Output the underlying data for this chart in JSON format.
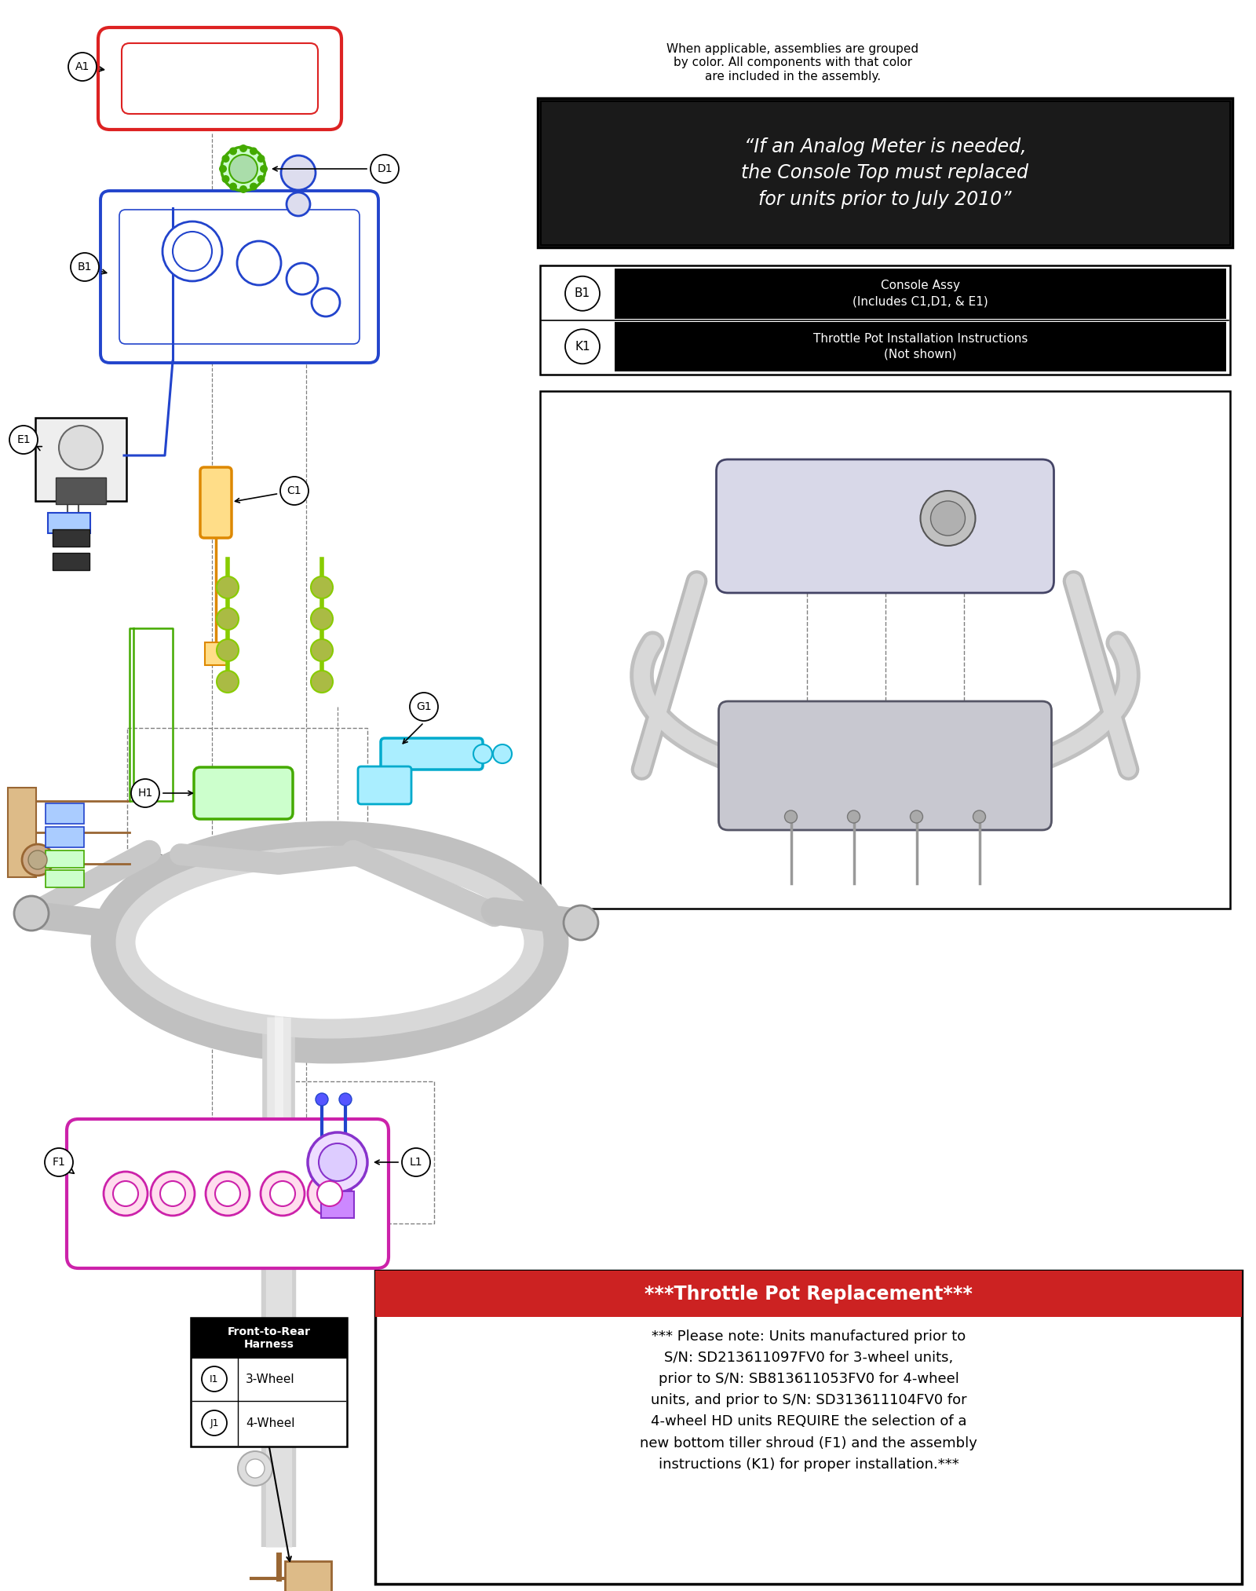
{
  "bg_color": "#ffffff",
  "header_note": "When applicable, assemblies are grouped\nby color. All components with that color\nare included in the assembly.",
  "analog_box_text": "“If an Analog Meter is needed,\nthe Console Top must replaced\nfor units prior to July 2010”",
  "legend_b1_desc": "Console Assy\n(Includes C1,D1, & E1)",
  "legend_k1_desc": "Throttle Pot Installation Instructions\n(Not shown)",
  "throttle_header": "***Throttle Pot Replacement***",
  "throttle_body": "*** Please note: Units manufactured prior to\nS/N: SD213611097FV0 for 3-wheel units,\nprior to S/N: SB813611053FV0 for 4-wheel\nunits, and prior to S/N: SD313611104FV0 for\n4-wheel HD units REQUIRE the selection of a\nnew bottom tiller shroud (F1) and the assembly\ninstructions (K1) for proper installation.***",
  "harness_title": "Front-to-Rear\nHarness",
  "harness_i1": "3-Wheel",
  "harness_j1": "4-Wheel",
  "color_red": "#dd2222",
  "color_blue": "#2244cc",
  "color_orange": "#dd8800",
  "color_green": "#44aa00",
  "color_cyan": "#00aacc",
  "color_magenta": "#cc22aa",
  "color_purple": "#8833cc",
  "color_olive": "#888800",
  "color_brown": "#996633",
  "color_lime": "#88cc00"
}
